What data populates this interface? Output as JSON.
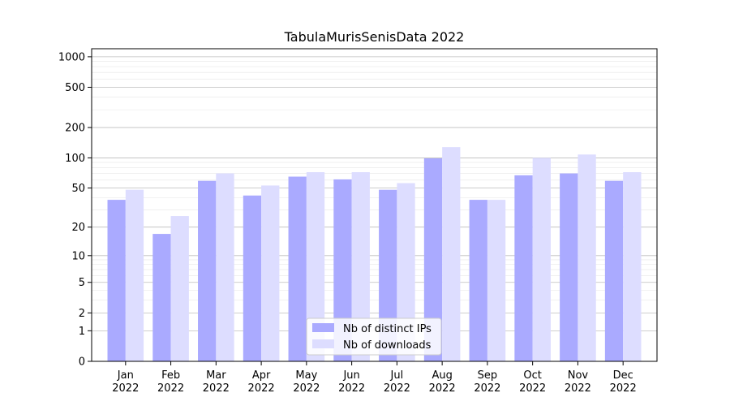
{
  "chart_data": {
    "type": "bar",
    "title": "TabulaMurisSenisData 2022",
    "xlabel": "",
    "ylabel": "",
    "yscale": "log1p",
    "ylim": [
      0,
      1200
    ],
    "ytick_values": [
      0,
      1,
      2,
      5,
      10,
      20,
      50,
      100,
      200,
      500,
      1000
    ],
    "ytick_labels": [
      "0",
      "1",
      "2",
      "5",
      "10",
      "20",
      "50",
      "100",
      "200",
      "500",
      "1000"
    ],
    "categories": [
      "Jan\n2022",
      "Feb\n2022",
      "Mar\n2022",
      "Apr\n2022",
      "May\n2022",
      "Jun\n2022",
      "Jul\n2022",
      "Aug\n2022",
      "Sep\n2022",
      "Oct\n2022",
      "Nov\n2022",
      "Dec\n2022"
    ],
    "series": [
      {
        "name": "Nb of distinct IPs",
        "color": "#aaaaff",
        "values": [
          38,
          17,
          59,
          42,
          65,
          61,
          48,
          99,
          38,
          67,
          70,
          59
        ]
      },
      {
        "name": "Nb of downloads",
        "color": "#ddddff",
        "values": [
          48,
          26,
          70,
          53,
          72,
          72,
          56,
          128,
          38,
          100,
          108,
          72
        ]
      }
    ],
    "grid": true,
    "legend_position": "lower-center"
  }
}
